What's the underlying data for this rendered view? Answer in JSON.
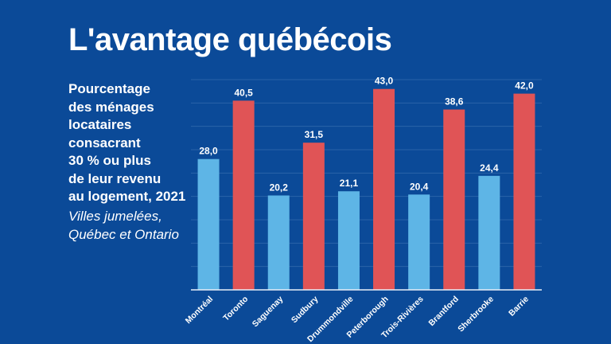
{
  "slide": {
    "title": "L'avantage québécois",
    "subtitle_lines": [
      "Pourcentage",
      "des ménages",
      "locataires",
      "consacrant",
      "30 % ou plus",
      "de leur revenu",
      "au logement, 2021"
    ],
    "note_lines": [
      "Villes jumelées,",
      "Québec et Ontario"
    ]
  },
  "colors": {
    "background": "#0b4a98",
    "quebec": "#5eb5e6",
    "ontario": "#e05456",
    "grid": "#2a63a8"
  },
  "chart_data": {
    "type": "bar",
    "title": "",
    "xlabel": "",
    "ylabel": "",
    "ylim": [
      0,
      45
    ],
    "grid_step": 5,
    "grid": true,
    "categories": [
      "Montréal",
      "Toronto",
      "Saguenay",
      "Sudbury",
      "Drummondville",
      "Peterborough",
      "Trois-Rivières",
      "Brantford",
      "Sherbrooke",
      "Barrie"
    ],
    "values": [
      28.0,
      40.5,
      20.2,
      31.5,
      21.1,
      43.0,
      20.4,
      38.6,
      24.4,
      42.0
    ],
    "value_labels": [
      "28,0",
      "40,5",
      "20,2",
      "31,5",
      "21,1",
      "43,0",
      "20,4",
      "38,6",
      "24,4",
      "42,0"
    ],
    "province": [
      "Québec",
      "Ontario",
      "Québec",
      "Ontario",
      "Québec",
      "Ontario",
      "Québec",
      "Ontario",
      "Québec",
      "Ontario"
    ]
  }
}
